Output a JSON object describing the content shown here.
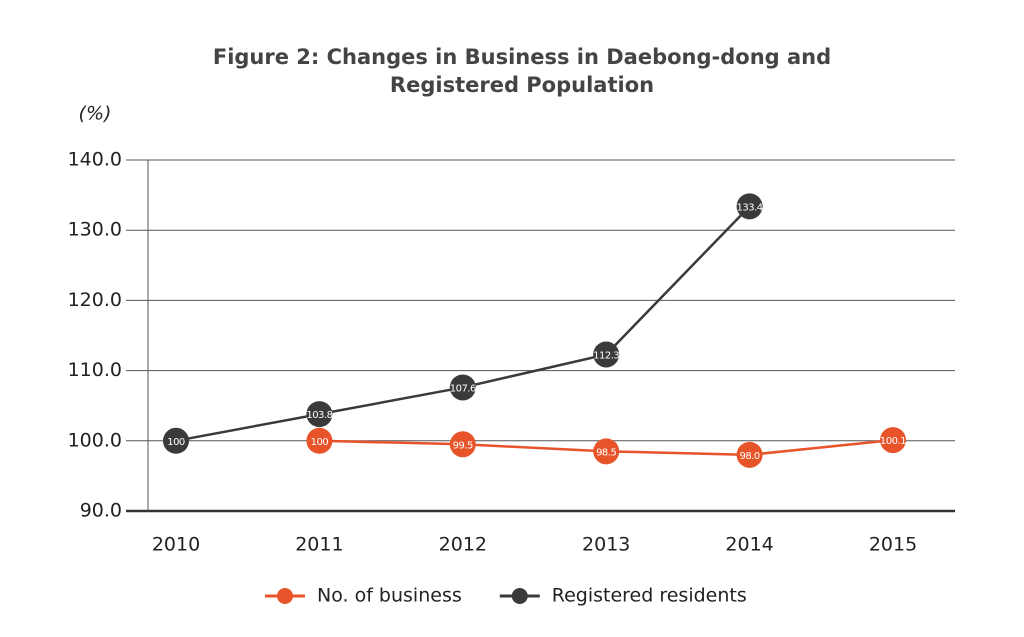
{
  "chart_data": {
    "type": "line",
    "title": "Figure 2: Changes in Business in Daebong-dong and",
    "title_line2": "Registered Population",
    "y_label": "(%)",
    "categories": [
      "2010",
      "2011",
      "2012",
      "2013",
      "2014",
      "2015"
    ],
    "series": [
      {
        "name": "No. of business",
        "color": "#e8542a",
        "values": [
          null,
          100,
          99.5,
          98.5,
          98.0,
          100.1
        ],
        "value_labels": [
          null,
          "100",
          "99.5",
          "98.5",
          "98.0",
          "100.1"
        ]
      },
      {
        "name": "Registered residents",
        "color": "#3a3a3a",
        "values": [
          100,
          103.8,
          107.6,
          112.3,
          133.4,
          null
        ]
      }
    ],
    "ylim": [
      90,
      140
    ],
    "yticks": [
      {
        "value": 90,
        "label": "90.0"
      },
      {
        "value": 100,
        "label": "100.0"
      },
      {
        "value": 110,
        "label": "110.0"
      },
      {
        "value": 120,
        "label": "120.0"
      },
      {
        "value": 130,
        "label": "130.0"
      },
      {
        "value": 140,
        "label": "140.0"
      }
    ],
    "grid": true,
    "legend": "bottom"
  }
}
